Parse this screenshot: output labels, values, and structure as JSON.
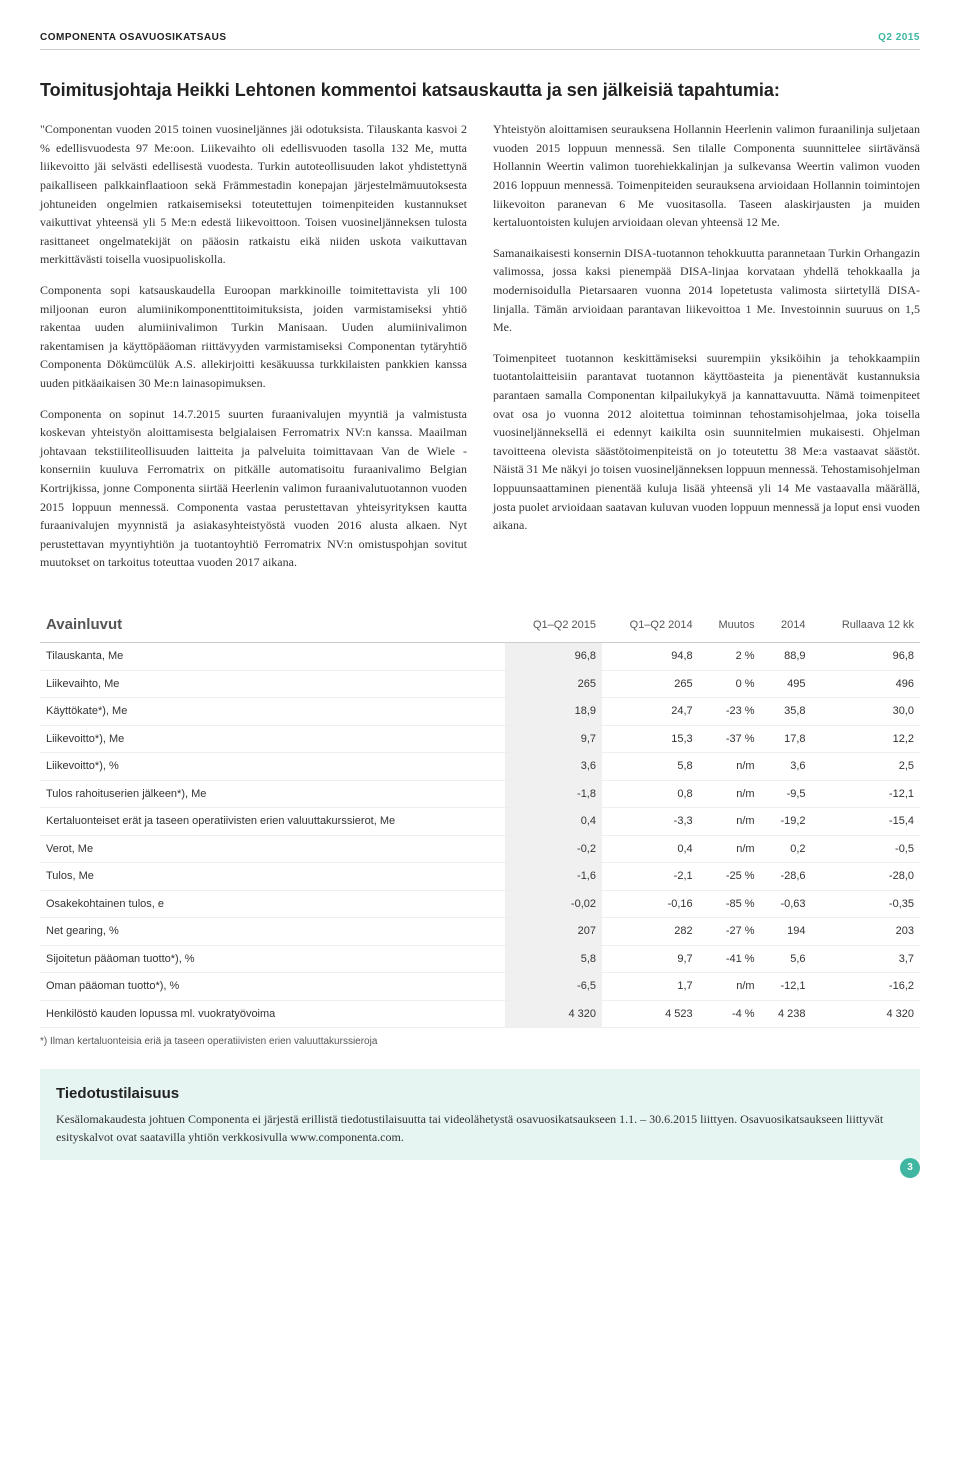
{
  "header": {
    "left": "COMPONENTA OSAVUOSIKATSAUS",
    "right": "Q2 2015"
  },
  "main_title": "Toimitusjohtaja Heikki Lehtonen kommentoi katsauskautta ja sen jälkeisiä tapahtumia:",
  "left_paragraphs": [
    "\"Componentan vuoden 2015 toinen vuosineljännes jäi odotuksista. Tilauskanta kasvoi 2 % edellisvuodesta 97 Me:oon. Liikevaihto oli edellisvuoden tasolla 132 Me, mutta liikevoitto jäi selvästi edellisestä vuodesta. Turkin autoteollisuuden lakot yhdistettynä paikalliseen palkkainflaatioon sekä Främmestadin konepajan järjestelmämuutoksesta johtuneiden ongelmien ratkaisemiseksi toteutettujen toimenpiteiden kustannukset vaikuttivat yhteensä yli 5 Me:n edestä liikevoittoon. Toisen vuosineljänneksen tulosta rasittaneet ongelmatekijät on pääosin ratkaistu eikä niiden uskota vaikuttavan merkittävästi toisella vuosipuoliskolla.",
    "Componenta sopi katsauskaudella Euroopan markkinoille toimitettavista yli 100 miljoonan euron alumiinikomponenttitoimituksista, joiden varmistamiseksi yhtiö rakentaa uuden alumiinivalimon Turkin Manisaan. Uuden alumiinivalimon rakentamisen ja käyttöpääoman riittävyyden varmistamiseksi Componentan tytäryhtiö Componenta Dökümcülük A.S. allekirjoitti kesäkuussa turkkilaisten pankkien kanssa uuden pitkäaikaisen 30 Me:n lainasopimuksen.",
    "Componenta on sopinut 14.7.2015 suurten furaanivalujen myyntiä ja valmistusta koskevan yhteistyön aloittamisesta belgialaisen Ferromatrix NV:n kanssa. Maailman johtavaan tekstiiliteollisuuden laitteita ja palveluita toimittavaan Van de Wiele -konserniin kuuluva Ferromatrix on pitkälle automatisoitu furaanivalimo Belgian Kortrijkissa, jonne Componenta siirtää Heerlenin valimon furaanivalutuotannon vuoden 2015 loppuun mennessä. Componenta vastaa perustettavan yhteisyrityksen kautta furaanivalujen myynnistä ja asiakasyhteistyöstä vuoden 2016 alusta alkaen. Nyt perustettavan myyntiyhtiön ja tuotantoyhtiö Ferromatrix NV:n omistuspohjan sovitut muutokset on tarkoitus toteuttaa vuoden 2017 aikana."
  ],
  "right_paragraphs": [
    "Yhteistyön aloittamisen seurauksena Hollannin Heerlenin valimon furaanilinja suljetaan vuoden 2015 loppuun mennessä. Sen tilalle Componenta suunnittelee siirtävänsä Hollannin Weertin valimon tuorehiekkalinjan ja sulkevansa Weertin valimon vuoden 2016 loppuun mennessä. Toimenpiteiden seurauksena arvioidaan Hollannin toimintojen liikevoiton paranevan 6 Me vuositasolla. Taseen alaskirjausten ja muiden kertaluontoisten kulujen arvioidaan olevan yhteensä 12 Me.",
    "Samanaikaisesti konsernin DISA-tuotannon tehokkuutta parannetaan Turkin Orhangazin valimossa, jossa kaksi pienempää DISA-linjaa korvataan yhdellä tehokkaalla ja modernisoidulla Pietarsaaren vuonna 2014 lopetetusta valimosta siirtetyllä DISA-linjalla.  Tämän arvioidaan parantavan liikevoittoa 1 Me. Investoinnin suuruus on 1,5 Me.",
    "Toimenpiteet tuotannon keskittämiseksi suurempiin yksiköihin ja tehokkaampiin tuotantolaitteisiin parantavat tuotannon käyttöasteita ja pienentävät kustannuksia parantaen samalla Componentan kilpailukykyä ja kannattavuutta. Nämä toimenpiteet ovat osa jo vuonna 2012 aloitettua toiminnan tehostamisohjelmaa, joka toisella vuosineljänneksellä ei edennyt kaikilta osin suunnitelmien mukaisesti. Ohjelman tavoitteena olevista säästötoimenpiteistä on jo toteutettu 38 Me:a vastaavat säästöt. Näistä 31 Me näkyi jo toisen vuosineljänneksen loppuun mennessä. Tehostamisohjelman loppuunsaattaminen pienentää kuluja lisää yhteensä yli 14 Me vastaavalla määrällä, josta puolet arvioidaan saatavan kuluvan vuoden loppuun mennessä ja loput ensi vuoden aikana."
  ],
  "table": {
    "title": "Avainluvut",
    "columns": [
      "",
      "Q1–Q2 2015",
      "Q1–Q2 2014",
      "Muutos",
      "2014",
      "Rullaava 12 kk"
    ],
    "rows": [
      [
        "Tilauskanta, Me",
        "96,8",
        "94,8",
        "2 %",
        "88,9",
        "96,8"
      ],
      [
        "Liikevaihto, Me",
        "265",
        "265",
        "0 %",
        "495",
        "496"
      ],
      [
        "Käyttökate*), Me",
        "18,9",
        "24,7",
        "-23 %",
        "35,8",
        "30,0"
      ],
      [
        "Liikevoitto*), Me",
        "9,7",
        "15,3",
        "-37 %",
        "17,8",
        "12,2"
      ],
      [
        "Liikevoitto*), %",
        "3,6",
        "5,8",
        "n/m",
        "3,6",
        "2,5"
      ],
      [
        "Tulos rahoituserien jälkeen*), Me",
        "-1,8",
        "0,8",
        "n/m",
        "-9,5",
        "-12,1"
      ],
      [
        "Kertaluonteiset erät ja taseen operatiivisten erien valuuttakurssierot, Me",
        "0,4",
        "-3,3",
        "n/m",
        "-19,2",
        "-15,4"
      ],
      [
        "Verot, Me",
        "-0,2",
        "0,4",
        "n/m",
        "0,2",
        "-0,5"
      ],
      [
        "Tulos, Me",
        "-1,6",
        "-2,1",
        "-25 %",
        "-28,6",
        "-28,0"
      ],
      [
        "Osakekohtainen tulos, e",
        "-0,02",
        "-0,16",
        "-85 %",
        "-0,63",
        "-0,35"
      ],
      [
        "Net gearing, %",
        "207",
        "282",
        "-27 %",
        "194",
        "203"
      ],
      [
        "Sijoitetun pääoman tuotto*), %",
        "5,8",
        "9,7",
        "-41 %",
        "5,6",
        "3,7"
      ],
      [
        "Oman pääoman tuotto*), %",
        "-6,5",
        "1,7",
        "n/m",
        "-12,1",
        "-16,2"
      ],
      [
        "Henkilöstö kauden lopussa ml. vuokratyövoima",
        "4 320",
        "4 523",
        "-4 %",
        "4 238",
        "4 320"
      ]
    ],
    "footnote": "*) Ilman kertaluonteisia eriä ja taseen operatiivisten erien valuuttakurssieroja"
  },
  "infobox": {
    "title": "Tiedotustilaisuus",
    "text": "Kesälomakaudesta johtuen Componenta ei järjestä erillistä tiedotustilaisuutta tai videolähetystä osavuosikatsaukseen 1.1. – 30.6.2015 liittyen. Osavuosikatsaukseen liittyvät esityskalvot ovat saatavilla yhtiön verkkosivulla www.componenta.com."
  },
  "page_number": "3",
  "colors": {
    "accent": "#3eb6a1",
    "infobox_bg": "#e6f5f2",
    "highlight_col_bg": "#f0f0f0"
  }
}
